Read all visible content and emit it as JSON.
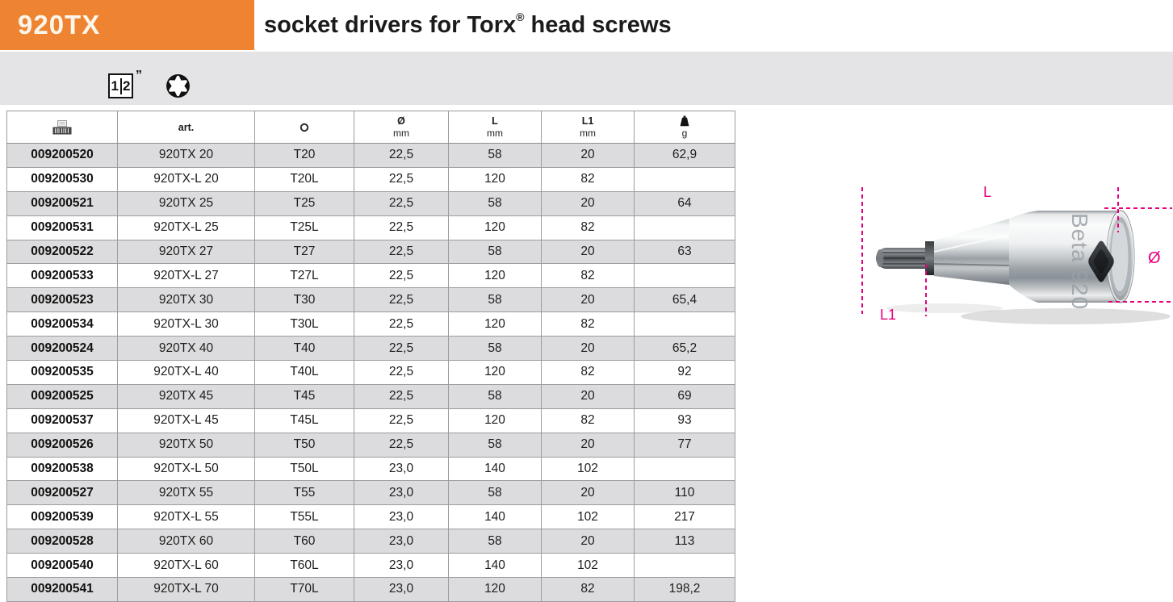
{
  "colors": {
    "accent_orange": "#EE8432",
    "dimension_magenta": "#E6007E",
    "bar_gray": "#E4E4E6",
    "row_gray": "#DCDCDE"
  },
  "header": {
    "product_code": "920TX",
    "title_main": "socket drivers for Torx",
    "title_registered": "®",
    "title_rest": " head screws"
  },
  "drive": {
    "numerator": "1",
    "denominator": "2",
    "unit": "”"
  },
  "table": {
    "column_keys": [
      "code",
      "art",
      "size",
      "diameter_mm",
      "L_mm",
      "L1_mm",
      "weight_g"
    ],
    "columns": [
      {
        "label": "",
        "icon": "barcode-icon"
      },
      {
        "label": "art.",
        "icon": ""
      },
      {
        "label": "",
        "icon": "torx-small-icon"
      },
      {
        "label": "Ø",
        "sub": "mm"
      },
      {
        "label": "L",
        "sub": "mm"
      },
      {
        "label": "L1",
        "sub": "mm"
      },
      {
        "label": "",
        "sub": "g",
        "icon": "weight-icon"
      }
    ],
    "rows": [
      [
        "009200520",
        "920TX 20",
        "T20",
        "22,5",
        "58",
        "20",
        "62,9"
      ],
      [
        "009200530",
        "920TX-L 20",
        "T20L",
        "22,5",
        "120",
        "82",
        ""
      ],
      [
        "009200521",
        "920TX 25",
        "T25",
        "22,5",
        "58",
        "20",
        "64"
      ],
      [
        "009200531",
        "920TX-L 25",
        "T25L",
        "22,5",
        "120",
        "82",
        ""
      ],
      [
        "009200522",
        "920TX 27",
        "T27",
        "22,5",
        "58",
        "20",
        "63"
      ],
      [
        "009200533",
        "920TX-L 27",
        "T27L",
        "22,5",
        "120",
        "82",
        ""
      ],
      [
        "009200523",
        "920TX 30",
        "T30",
        "22,5",
        "58",
        "20",
        "65,4"
      ],
      [
        "009200534",
        "920TX-L 30",
        "T30L",
        "22,5",
        "120",
        "82",
        ""
      ],
      [
        "009200524",
        "920TX 40",
        "T40",
        "22,5",
        "58",
        "20",
        "65,2"
      ],
      [
        "009200535",
        "920TX-L 40",
        "T40L",
        "22,5",
        "120",
        "82",
        "92"
      ],
      [
        "009200525",
        "920TX 45",
        "T45",
        "22,5",
        "58",
        "20",
        "69"
      ],
      [
        "009200537",
        "920TX-L 45",
        "T45L",
        "22,5",
        "120",
        "82",
        "93"
      ],
      [
        "009200526",
        "920TX 50",
        "T50",
        "22,5",
        "58",
        "20",
        "77"
      ],
      [
        "009200538",
        "920TX-L 50",
        "T50L",
        "23,0",
        "140",
        "102",
        ""
      ],
      [
        "009200527",
        "920TX 55",
        "T55",
        "23,0",
        "58",
        "20",
        "110"
      ],
      [
        "009200539",
        "920TX-L 55",
        "T55L",
        "23,0",
        "140",
        "102",
        "217"
      ],
      [
        "009200528",
        "920TX 60",
        "T60",
        "23,0",
        "58",
        "20",
        "113"
      ],
      [
        "009200540",
        "920TX-L 60",
        "T60L",
        "23,0",
        "140",
        "102",
        ""
      ],
      [
        "009200541",
        "920TX-L 70",
        "T70L",
        "23,0",
        "120",
        "82",
        "198,2"
      ]
    ]
  },
  "figure": {
    "engraving": "Beta 920",
    "labels": {
      "L": "L",
      "L1": "L1",
      "diameter": "Ø"
    }
  }
}
